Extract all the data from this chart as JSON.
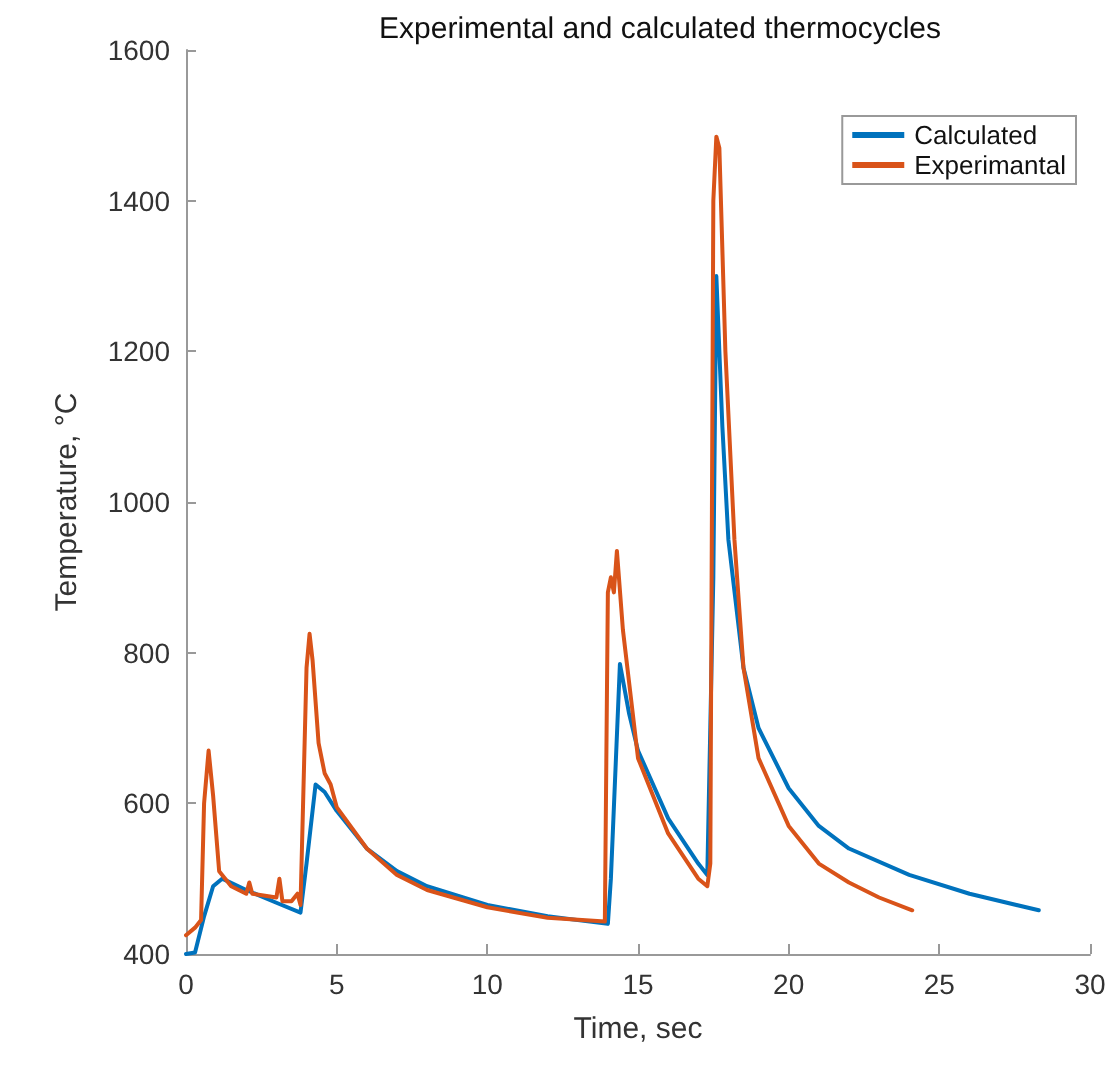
{
  "chart_data": {
    "type": "line",
    "title": "Experimental and calculated thermocycles",
    "xlabel": "Time, sec",
    "ylabel": "Temperature, °C",
    "xlim": [
      0,
      30
    ],
    "xticks": [
      0,
      5,
      10,
      15,
      20,
      25,
      30
    ],
    "ylim": [
      400,
      1600
    ],
    "yticks": [
      400,
      600,
      800,
      1000,
      1200,
      1400,
      1600
    ],
    "grid": false,
    "legend": "top right",
    "marker": "none",
    "line_style": "solid",
    "series": [
      {
        "name": "Calculated",
        "color": "#0072bd",
        "x": [
          0,
          0.3,
          0.6,
          0.9,
          1.2,
          2,
          3,
          3.8,
          4,
          4.3,
          4.6,
          5,
          6,
          7,
          8,
          10,
          12,
          14,
          14.1,
          14.4,
          14.7,
          15,
          16,
          17,
          17.3,
          17.5,
          17.6,
          17.8,
          18,
          18.5,
          19,
          20,
          21,
          22,
          24,
          26,
          28.3
        ],
        "values": [
          400,
          402,
          450,
          490,
          500,
          485,
          468,
          455,
          520,
          625,
          615,
          590,
          540,
          510,
          490,
          465,
          450,
          440,
          500,
          785,
          720,
          670,
          580,
          520,
          505,
          900,
          1300,
          1100,
          950,
          780,
          700,
          620,
          570,
          540,
          505,
          480,
          458
        ]
      },
      {
        "name": "Experimantal",
        "color": "#d95319",
        "x": [
          0,
          0.3,
          0.5,
          0.6,
          0.75,
          0.9,
          1.1,
          1.5,
          2,
          2.1,
          2.2,
          3,
          3.1,
          3.2,
          3.5,
          3.7,
          3.8,
          4,
          4.1,
          4.2,
          4.4,
          4.6,
          4.8,
          5,
          6,
          7,
          8,
          10,
          12,
          13.9,
          14,
          14.1,
          14.2,
          14.3,
          14.5,
          15,
          16,
          17,
          17.3,
          17.4,
          17.5,
          17.6,
          17.7,
          17.9,
          18.2,
          18.5,
          19,
          20,
          21,
          22,
          23,
          24.1
        ],
        "values": [
          425,
          435,
          445,
          600,
          670,
          610,
          510,
          490,
          480,
          495,
          480,
          475,
          500,
          470,
          470,
          480,
          465,
          780,
          825,
          790,
          680,
          640,
          625,
          595,
          540,
          505,
          485,
          462,
          448,
          443,
          880,
          900,
          880,
          935,
          830,
          660,
          560,
          500,
          490,
          520,
          1400,
          1485,
          1470,
          1200,
          950,
          780,
          660,
          570,
          520,
          495,
          475,
          458
        ]
      }
    ]
  }
}
